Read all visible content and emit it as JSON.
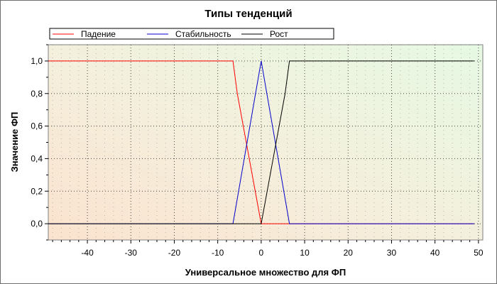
{
  "chart_data": {
    "type": "line",
    "title": "Типы тенденций",
    "xlabel": "Универсальное множество для ФП",
    "ylabel": "Значение ФП",
    "xlim": [
      -49,
      51
    ],
    "ylim": [
      -0.1,
      1.1
    ],
    "x_ticks": [
      -40,
      -30,
      -20,
      -10,
      0,
      10,
      20,
      30,
      40,
      50
    ],
    "x_tick_labels": [
      "-40",
      "-30",
      "-20",
      "-10",
      "0",
      "10",
      "20",
      "30",
      "40",
      "50"
    ],
    "y_ticks": [
      0.0,
      0.2,
      0.4,
      0.6,
      0.8,
      1.0
    ],
    "y_tick_labels": [
      "0,0",
      "0,2",
      "0,4",
      "0,6",
      "0,8",
      "1,0"
    ],
    "grid": "dotted",
    "legend": "top",
    "series": [
      {
        "name": "Падение",
        "color": "#ff0000",
        "x": [
          -49,
          -6.5,
          -5.5,
          0,
          49
        ],
        "y": [
          1.0,
          1.0,
          0.8,
          0.0,
          0.0
        ]
      },
      {
        "name": "Стабильность",
        "color": "#0000cc",
        "x": [
          -49,
          -6.5,
          0,
          6.5,
          49
        ],
        "y": [
          0.0,
          0.0,
          1.0,
          0.0,
          0.0
        ]
      },
      {
        "name": "Рост",
        "color": "#000000",
        "x": [
          -49,
          0,
          5.5,
          6.5,
          49
        ],
        "y": [
          0.0,
          0.0,
          0.8,
          1.0,
          1.0
        ]
      }
    ]
  }
}
